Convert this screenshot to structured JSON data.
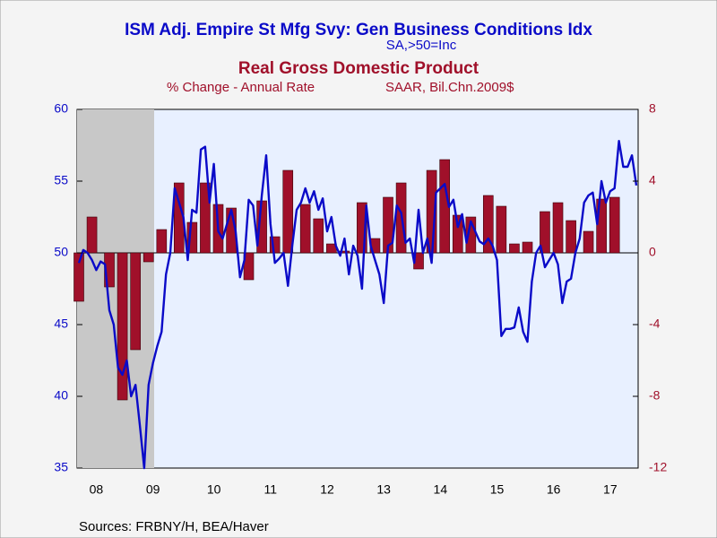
{
  "chart_data": {
    "type": "combo",
    "source": "Sources:  FRBNY/H, BEA/Haver",
    "categories": [
      null,
      null,
      null,
      null,
      "08",
      null,
      null,
      null,
      null,
      null,
      null,
      null,
      null,
      null,
      null,
      null,
      null,
      "09",
      null,
      null,
      null,
      null,
      null,
      null,
      null,
      null,
      null,
      null,
      null,
      null,
      null,
      "10",
      null,
      null,
      null,
      null,
      null,
      null,
      null,
      null,
      null,
      null,
      null,
      null,
      "11",
      null,
      null,
      null,
      null,
      null,
      null,
      null,
      null,
      null,
      null,
      null,
      null,
      "12",
      null,
      null,
      null,
      null,
      null,
      null,
      null,
      null,
      null,
      null,
      null,
      null,
      "13",
      null,
      null,
      null,
      null,
      null,
      null,
      null,
      null,
      null,
      null,
      null,
      null,
      "14",
      null,
      null,
      null,
      null,
      null,
      null,
      null,
      null,
      null,
      null,
      null,
      null,
      "15",
      null,
      null,
      null,
      null,
      null,
      null,
      null,
      null,
      null,
      null,
      null,
      null,
      "16",
      null,
      null,
      null,
      null,
      null,
      null,
      null,
      null,
      null,
      null,
      null,
      null,
      "17",
      null,
      null,
      null,
      null,
      null,
      null
    ],
    "series": [
      {
        "name": "ISM Adj. Empire St Mfg Svy: Gen Business Conditions Idx",
        "units": [
          "SA,>50=Inc"
        ],
        "type": "line",
        "axis": "y",
        "color": "#0a0ac8",
        "values": [
          49.3,
          50.2,
          50.0,
          49.5,
          48.8,
          49.4,
          49.2,
          46.0,
          45.0,
          42.0,
          41.5,
          42.5,
          40.0,
          40.8,
          38.0,
          35.0,
          40.8,
          42.3,
          43.5,
          44.5,
          48.5,
          50.0,
          54.5,
          53.5,
          52.5,
          49.5,
          53.0,
          52.8,
          57.2,
          57.4,
          53.5,
          56.2,
          51.5,
          51.0,
          52.0,
          53.0,
          51.5,
          48.3,
          49.5,
          53.7,
          53.3,
          50.5,
          54.0,
          56.8,
          52.0,
          49.3,
          49.6,
          50.0,
          47.7,
          50.5,
          53.0,
          53.5,
          54.5,
          53.5,
          54.3,
          53.0,
          53.8,
          51.5,
          52.5,
          50.5,
          49.8,
          51.0,
          48.5,
          50.5,
          49.8,
          47.5,
          53.3,
          50.5,
          49.5,
          48.5,
          46.5,
          50.5,
          50.7,
          53.3,
          52.8,
          50.7,
          51.0,
          49.3,
          53.0,
          50.0,
          51.0,
          49.3,
          54.2,
          54.5,
          54.8,
          53.2,
          53.7,
          51.8,
          52.7,
          50.7,
          52.2,
          51.5,
          50.8,
          50.6,
          51.0,
          50.5,
          49.5,
          44.2,
          44.7,
          44.7,
          44.8,
          46.2,
          44.5,
          43.8,
          48.0,
          50.0,
          50.5,
          49.0,
          49.5,
          50.0,
          49.2,
          46.5,
          48.0,
          48.2,
          50.0,
          51.0,
          53.5,
          54.0,
          54.2,
          52.0,
          55.0,
          53.5,
          54.3,
          54.5,
          57.8,
          56.0,
          56.0,
          56.8,
          54.7
        ]
      },
      {
        "name": "Real Gross Domestic Product",
        "units": [
          "% Change - Annual Rate",
          "SAAR, Bil.Chn.2009$"
        ],
        "type": "bar",
        "axis": "y2",
        "color": "#a0102a",
        "values": [
          -2.7,
          null,
          null,
          2.0,
          null,
          null,
          null,
          -1.9,
          null,
          null,
          -8.2,
          null,
          null,
          -5.4,
          null,
          null,
          -0.5,
          null,
          null,
          1.3,
          null,
          null,
          null,
          3.9,
          null,
          null,
          1.7,
          null,
          null,
          3.9,
          null,
          null,
          2.7,
          null,
          null,
          2.5,
          null,
          null,
          null,
          -1.5,
          null,
          null,
          2.9,
          null,
          null,
          0.9,
          null,
          null,
          4.6,
          null,
          null,
          null,
          2.7,
          null,
          null,
          1.9,
          null,
          null,
          0.5,
          null,
          null,
          0.1,
          null,
          null,
          null,
          2.8,
          null,
          null,
          0.8,
          null,
          null,
          3.1,
          null,
          null,
          3.9,
          null,
          null,
          null,
          -0.9,
          null,
          null,
          4.6,
          null,
          null,
          5.2,
          null,
          null,
          2.1,
          null,
          null,
          2.0,
          null,
          null,
          null,
          3.2,
          null,
          null,
          2.6,
          null,
          null,
          0.5,
          null,
          null,
          0.6,
          null,
          null,
          null,
          2.3,
          null,
          null,
          2.8,
          null,
          null,
          1.8,
          null,
          null,
          null,
          1.2,
          null,
          null,
          3.0,
          null,
          null,
          3.1,
          null,
          null,
          null,
          null,
          null
        ]
      }
    ],
    "ylim": [
      35,
      60
    ],
    "yticks": [
      35,
      40,
      45,
      50,
      55,
      60
    ],
    "y2lim": [
      -12,
      8
    ],
    "y2ticks": [
      -12,
      -8,
      -4,
      0,
      4,
      8
    ],
    "zero_line": true
  }
}
